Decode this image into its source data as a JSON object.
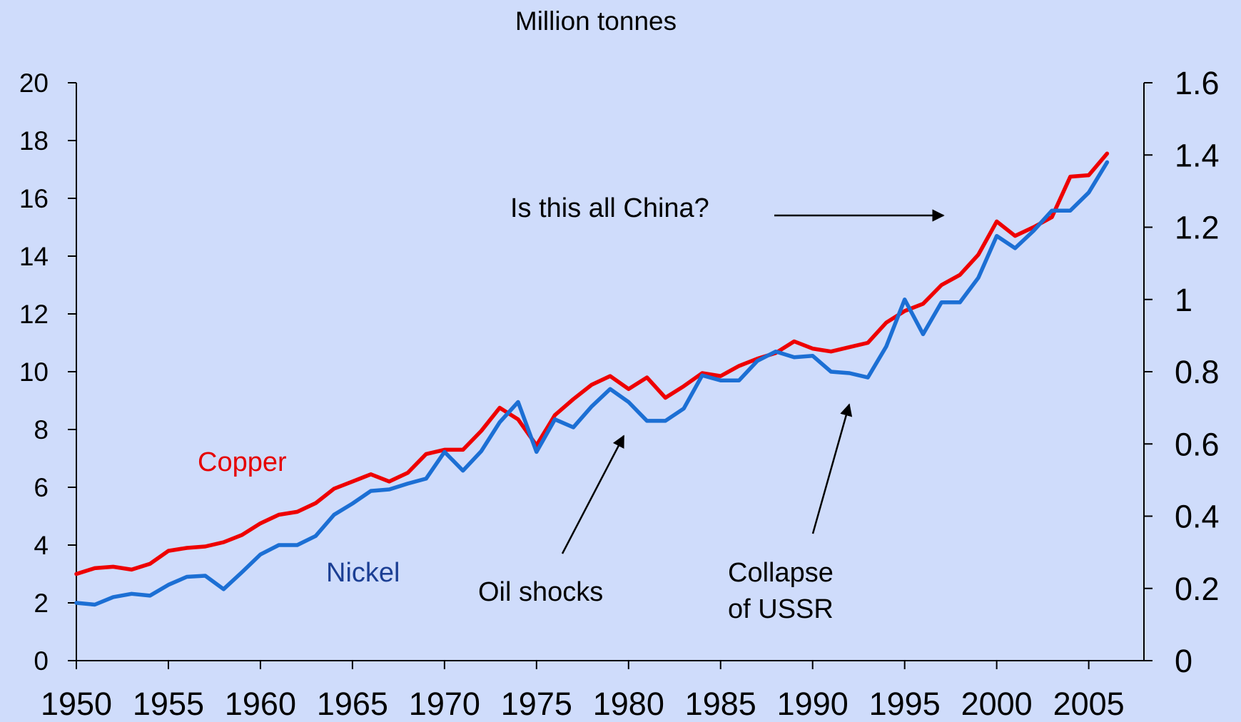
{
  "chart_data": {
    "type": "line",
    "title": "Million tonnes",
    "x_ticks": [
      "1950",
      "1955",
      "1960",
      "1965",
      "1970",
      "1975",
      "1980",
      "1985",
      "1990",
      "1995",
      "2000",
      "2005"
    ],
    "y_left": {
      "ylim": [
        0,
        20
      ],
      "ticks": [
        "0",
        "2",
        "4",
        "6",
        "8",
        "10",
        "12",
        "14",
        "16",
        "18",
        "20"
      ]
    },
    "y_right": {
      "ylim": [
        0,
        1.6
      ],
      "ticks": [
        "0",
        "0.2",
        "0.4",
        "0.6",
        "0.8",
        "1",
        "1.2",
        "1.4",
        "1.6"
      ]
    },
    "xlim": [
      1950,
      2008
    ],
    "series": [
      {
        "name": "Copper",
        "axis": "left",
        "color": "#ee0000",
        "x": [
          1950,
          1951,
          1952,
          1953,
          1954,
          1955,
          1956,
          1957,
          1958,
          1959,
          1960,
          1961,
          1962,
          1963,
          1964,
          1965,
          1966,
          1967,
          1968,
          1969,
          1970,
          1971,
          1972,
          1973,
          1974,
          1975,
          1976,
          1977,
          1978,
          1979,
          1980,
          1981,
          1982,
          1983,
          1984,
          1985,
          1986,
          1987,
          1988,
          1989,
          1990,
          1991,
          1992,
          1993,
          1994,
          1995,
          1996,
          1997,
          1998,
          1999,
          2000,
          2001,
          2002,
          2003,
          2004,
          2005,
          2006
        ],
        "values": [
          3.0,
          3.2,
          3.25,
          3.15,
          3.35,
          3.8,
          3.9,
          3.95,
          4.1,
          4.35,
          4.75,
          5.05,
          5.15,
          5.45,
          5.95,
          6.2,
          6.45,
          6.2,
          6.5,
          7.15,
          7.3,
          7.3,
          7.95,
          8.75,
          8.35,
          7.45,
          8.5,
          9.05,
          9.55,
          9.85,
          9.4,
          9.8,
          9.1,
          9.5,
          9.95,
          9.85,
          10.2,
          10.45,
          10.65,
          11.05,
          10.8,
          10.7,
          10.85,
          11.0,
          11.7,
          12.1,
          12.35,
          13.0,
          13.35,
          14.05,
          15.2,
          14.7,
          15.0,
          15.35,
          16.75,
          16.8,
          17.55
        ]
      },
      {
        "name": "Nickel",
        "axis": "right",
        "color": "#1c6fd4",
        "x": [
          1950,
          1951,
          1952,
          1953,
          1954,
          1955,
          1956,
          1957,
          1958,
          1959,
          1960,
          1961,
          1962,
          1963,
          1964,
          1965,
          1966,
          1967,
          1968,
          1969,
          1970,
          1971,
          1972,
          1973,
          1974,
          1975,
          1976,
          1977,
          1978,
          1979,
          1980,
          1981,
          1982,
          1983,
          1984,
          1985,
          1986,
          1987,
          1988,
          1989,
          1990,
          1991,
          1992,
          1993,
          1994,
          1995,
          1996,
          1997,
          1998,
          1999,
          2000,
          2001,
          2002,
          2003,
          2004,
          2005,
          2006
        ],
        "values": [
          0.16,
          0.155,
          0.176,
          0.185,
          0.18,
          0.21,
          0.232,
          0.235,
          0.198,
          0.245,
          0.294,
          0.32,
          0.32,
          0.345,
          0.404,
          0.435,
          0.47,
          0.474,
          0.49,
          0.504,
          0.578,
          0.526,
          0.58,
          0.66,
          0.716,
          0.578,
          0.668,
          0.646,
          0.704,
          0.752,
          0.716,
          0.664,
          0.664,
          0.698,
          0.79,
          0.776,
          0.776,
          0.83,
          0.856,
          0.84,
          0.844,
          0.8,
          0.796,
          0.784,
          0.87,
          1.0,
          0.904,
          0.992,
          0.992,
          1.06,
          1.176,
          1.142,
          1.19,
          1.246,
          1.246,
          1.296,
          1.38
        ]
      }
    ],
    "annotations": {
      "copper_label": "Copper",
      "nickel_label": "Nickel",
      "china": "Is this all China?",
      "oil": "Oil shocks",
      "ussr_line1": "Collapse",
      "ussr_line2": "of USSR"
    }
  }
}
